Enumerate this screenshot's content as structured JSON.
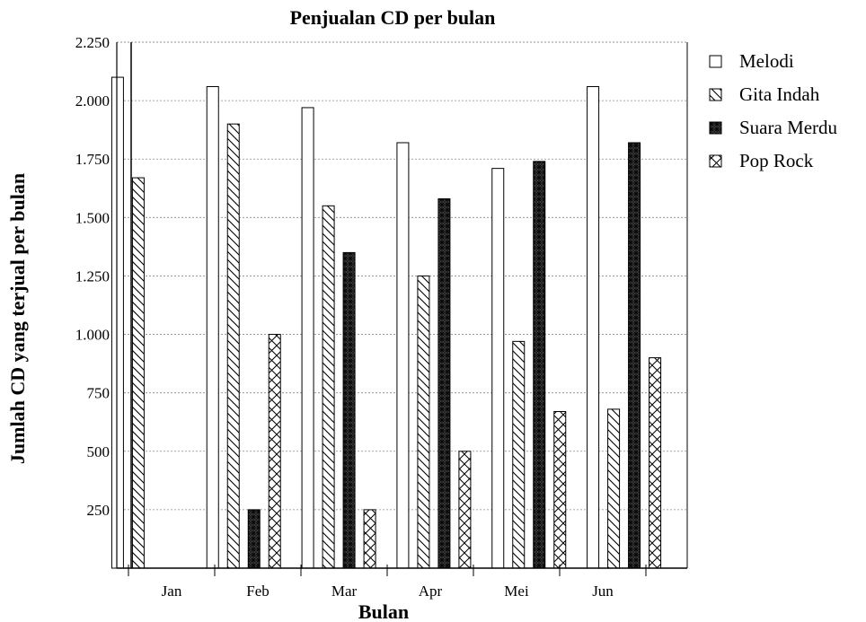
{
  "chart_data": {
    "type": "bar",
    "title": "Penjualan CD per bulan",
    "xlabel": "Bulan",
    "ylabel": "Jumlah CD yang terjual per bulan",
    "categories": [
      "Jan",
      "Feb",
      "Mar",
      "Apr",
      "Mei",
      "Jun"
    ],
    "y_ticks": [
      "250",
      "500",
      "750",
      "1.000",
      "1.250",
      "1.500",
      "1.750",
      "2.000",
      "2.250"
    ],
    "ylim": [
      0,
      2250
    ],
    "grid": true,
    "legend_position": "right",
    "series": [
      {
        "name": "Melodi",
        "pattern": "hollow",
        "values": [
          2100,
          2060,
          1970,
          1820,
          1710,
          2060
        ]
      },
      {
        "name": "Gita Indah",
        "pattern": "diagonal-hatch",
        "values": [
          1670,
          1900,
          1550,
          1250,
          970,
          680
        ]
      },
      {
        "name": "Suara Merdu",
        "pattern": "dense-crosshatch",
        "values": [
          0,
          250,
          1350,
          1580,
          1740,
          1820
        ]
      },
      {
        "name": "Pop Rock",
        "pattern": "diamond-crosshatch",
        "values": [
          0,
          1000,
          250,
          500,
          670,
          900
        ]
      }
    ]
  }
}
